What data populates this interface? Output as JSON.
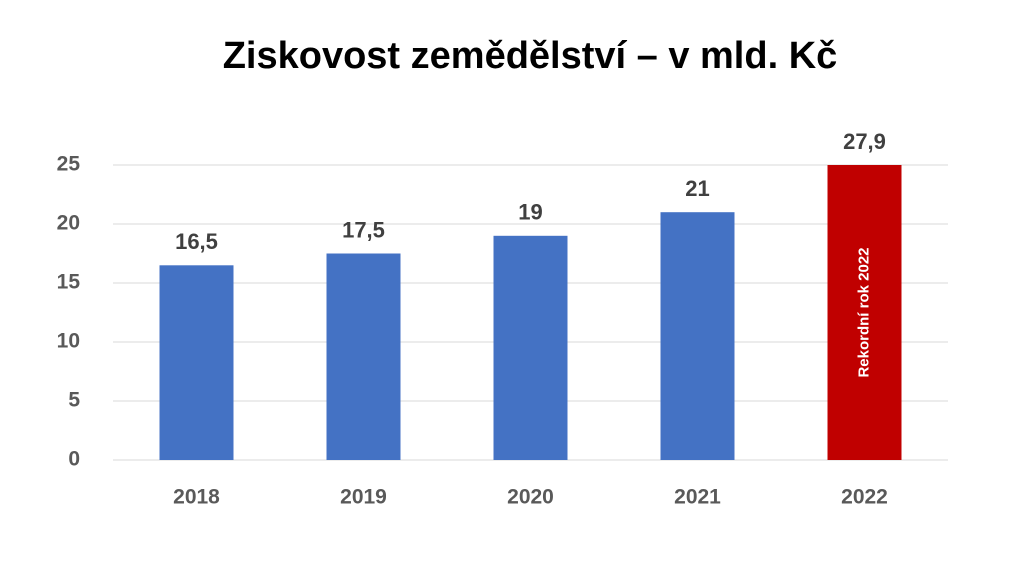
{
  "chart_data": {
    "type": "bar",
    "title": "Ziskovost zemědělství – v mld. Kč",
    "categories": [
      "2018",
      "2019",
      "2020",
      "2021",
      "2022"
    ],
    "values": [
      16.5,
      17.5,
      19,
      21,
      27.9
    ],
    "value_labels": [
      "16,5",
      "17,5",
      "19",
      "21",
      "27,9"
    ],
    "colors": [
      "#4472c4",
      "#4472c4",
      "#4472c4",
      "#4472c4",
      "#c00000"
    ],
    "ylim": [
      0,
      25
    ],
    "yticks": [
      0,
      5,
      10,
      15,
      20,
      25
    ],
    "grid": true,
    "annotations": [
      {
        "text": "Rekordní rok 2022",
        "category": "2022"
      }
    ]
  }
}
